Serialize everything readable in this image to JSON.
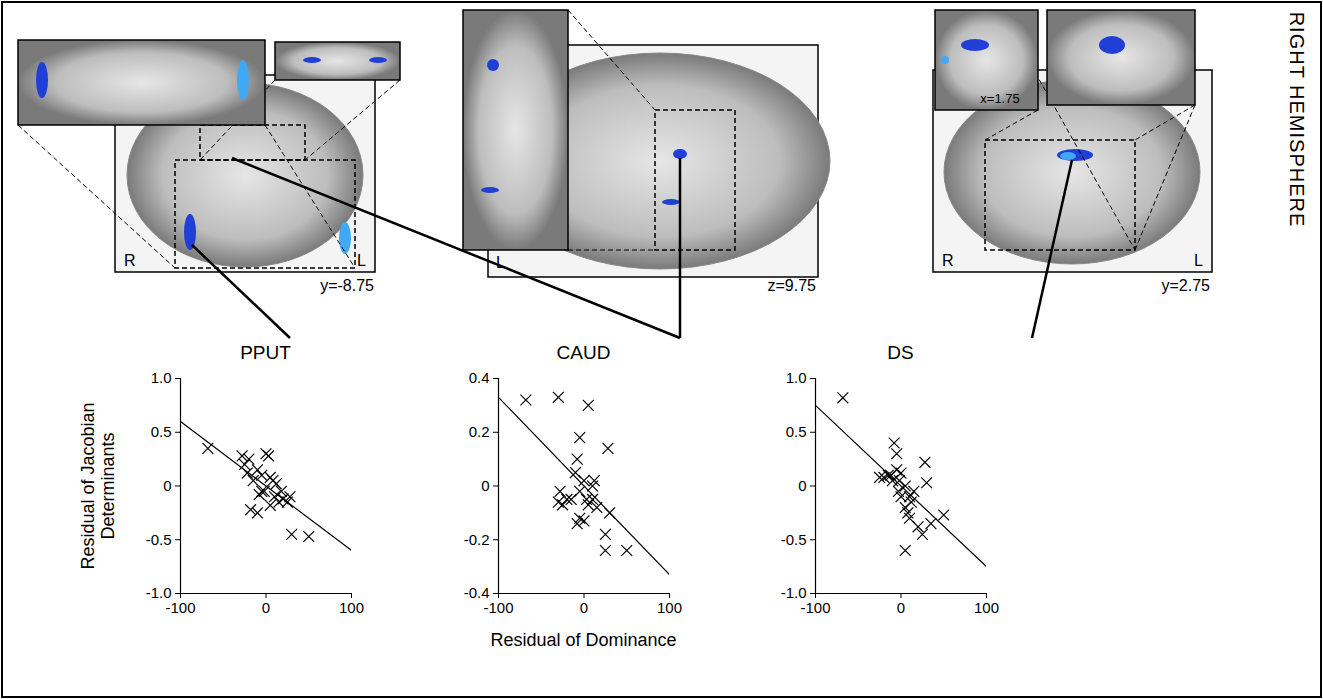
{
  "chart_data": [
    {
      "type": "scatter",
      "title": "PPUT",
      "y_label": "Residual of Jacobian Determinants",
      "color": "#000000",
      "marker": "x",
      "x": [
        -68,
        -28,
        -25,
        -22,
        -20,
        -15,
        -10,
        -8,
        -5,
        -2,
        0,
        3,
        5,
        -18,
        -10,
        5,
        8,
        10,
        15,
        18,
        20,
        25,
        28,
        30,
        50,
        -5,
        12
      ],
      "y": [
        0.35,
        0.28,
        0.2,
        0.12,
        0.25,
        0.05,
        0.15,
        -0.08,
        0.1,
        -0.05,
        0.3,
        0.28,
        0.08,
        -0.22,
        -0.25,
        -0.18,
        0.05,
        -0.1,
        -0.15,
        -0.05,
        -0.12,
        -0.15,
        -0.1,
        -0.45,
        -0.47,
        -0.05,
        0.02
      ],
      "fit_line": {
        "x": [
          -100,
          100
        ],
        "y": [
          0.6,
          -0.6
        ]
      },
      "xlim": [
        -100,
        100
      ],
      "xticks": [
        -100,
        0,
        100
      ],
      "ylim": [
        -1,
        1
      ],
      "yticks": [
        {
          "value": -1,
          "label": "-1.0"
        },
        -0.5,
        0,
        0.5,
        {
          "value": 1,
          "label": "1.0"
        }
      ]
    },
    {
      "type": "scatter",
      "title": "CAUD",
      "x_label": "Residual of Dominance",
      "color": "#000000",
      "marker": "x",
      "x": [
        -68,
        -30,
        5,
        -5,
        -8,
        -28,
        -30,
        -25,
        -15,
        -10,
        -5,
        0,
        -5,
        0,
        -8,
        10,
        12,
        10,
        5,
        15,
        28,
        30,
        25,
        25,
        50,
        3,
        -20
      ],
      "y": [
        0.32,
        0.33,
        0.3,
        0.18,
        0.1,
        -0.02,
        -0.06,
        -0.07,
        -0.05,
        0.05,
        -0.02,
        0.02,
        -0.12,
        -0.13,
        -0.14,
        0,
        0.02,
        -0.05,
        -0.07,
        -0.08,
        0.14,
        -0.1,
        -0.18,
        -0.24,
        -0.24,
        -0.05,
        -0.05
      ],
      "fit_line": {
        "x": [
          -100,
          100
        ],
        "y": [
          0.33,
          -0.33
        ]
      },
      "xlim": [
        -100,
        100
      ],
      "xticks": [
        -100,
        0,
        100
      ],
      "ylim": [
        -0.4,
        0.4
      ],
      "yticks": [
        -0.4,
        -0.2,
        0,
        0.2,
        0.4
      ]
    },
    {
      "type": "scatter",
      "title": "DS",
      "color": "#000000",
      "marker": "x",
      "x": [
        -68,
        -8,
        -5,
        -25,
        -20,
        -15,
        -12,
        -10,
        -5,
        0,
        -2,
        5,
        -3,
        0,
        5,
        8,
        10,
        10,
        15,
        20,
        28,
        30,
        25,
        35,
        50,
        5,
        12
      ],
      "y": [
        0.82,
        0.4,
        0.3,
        0.08,
        0.08,
        0.1,
        0.1,
        0.05,
        0.15,
        0.12,
        0.05,
        0,
        -0.05,
        -0.1,
        -0.2,
        -0.25,
        -0.3,
        -0.1,
        -0.05,
        -0.38,
        0.22,
        0.03,
        -0.45,
        -0.35,
        -0.27,
        -0.6,
        -0.15
      ],
      "fit_line": {
        "x": [
          -100,
          100
        ],
        "y": [
          0.75,
          -0.75
        ]
      },
      "xlim": [
        -100,
        100
      ],
      "xticks": [
        -100,
        0,
        100
      ],
      "ylim": [
        -1,
        1
      ],
      "yticks": [
        {
          "value": -1,
          "label": "-1.0"
        },
        -0.5,
        0,
        0.5,
        {
          "value": 1,
          "label": "1.0"
        }
      ]
    }
  ],
  "figure": {
    "side_label": "RIGHT HEMISPHERE",
    "brain_panels": [
      {
        "left_label": "R",
        "right_label": "L",
        "coordinate": "y=-8.75"
      },
      {
        "left_label": "L",
        "coordinate": "z=9.75"
      },
      {
        "left_label": "R",
        "right_label": "L",
        "coordinate": "y=2.75",
        "inset_coordinate": "x=1.75"
      }
    ]
  }
}
